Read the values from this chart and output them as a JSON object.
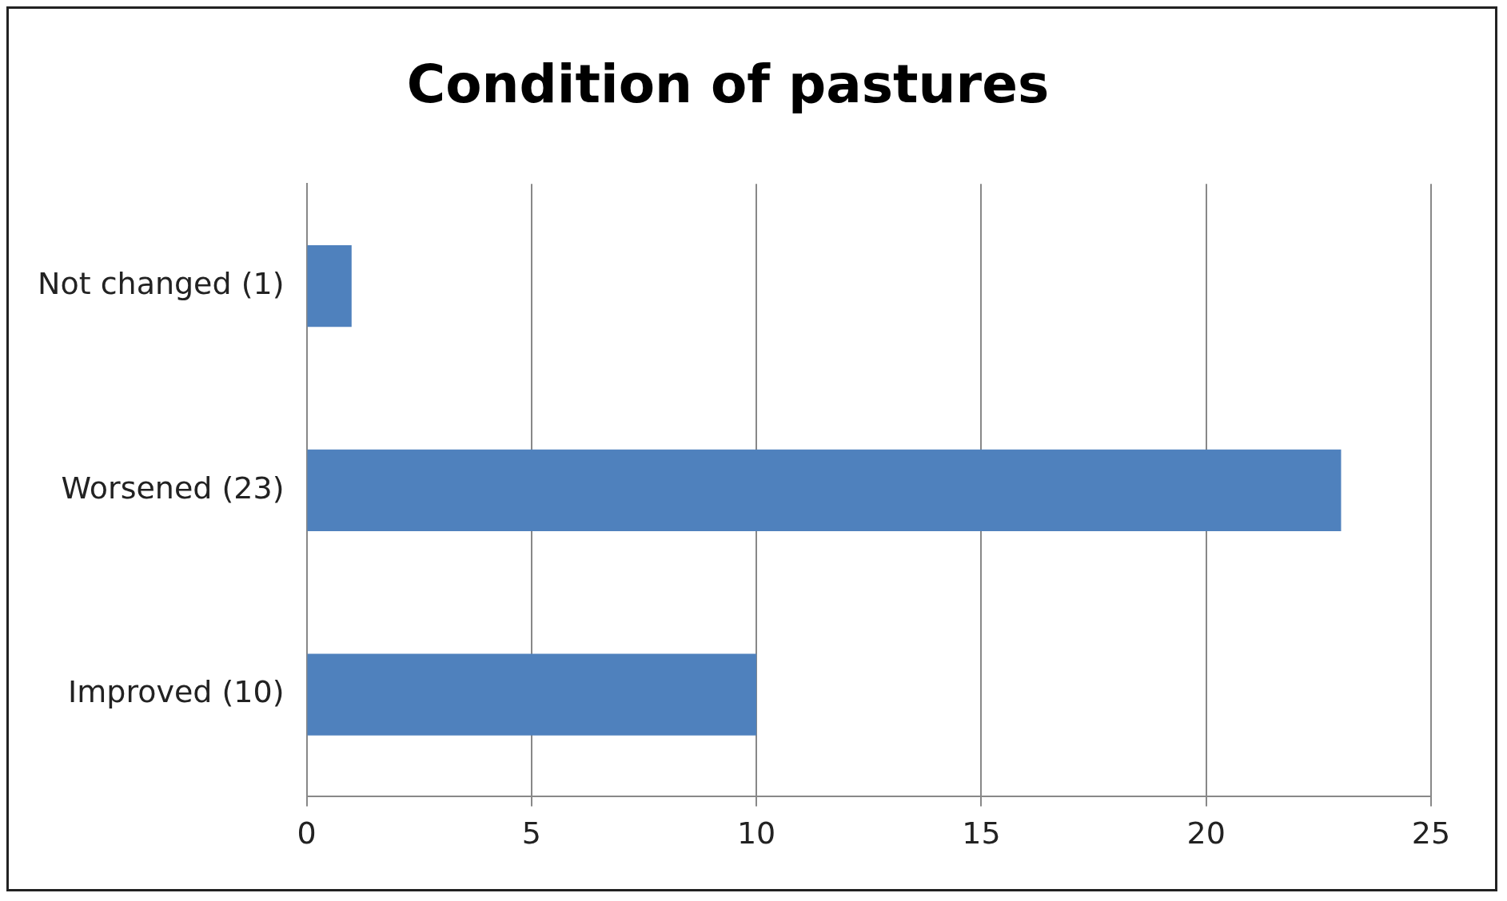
{
  "chart_data": {
    "type": "bar",
    "orientation": "horizontal",
    "title": "Condition of pastures",
    "categories": [
      "Not changed (1)",
      "Worsened (23)",
      "Improved (10)"
    ],
    "values": [
      1,
      23,
      10
    ],
    "color": "#4f81bd",
    "xlim": [
      0,
      25
    ],
    "xticks": [
      0,
      5,
      10,
      15,
      20,
      25
    ],
    "grid": "x",
    "legend": false
  }
}
